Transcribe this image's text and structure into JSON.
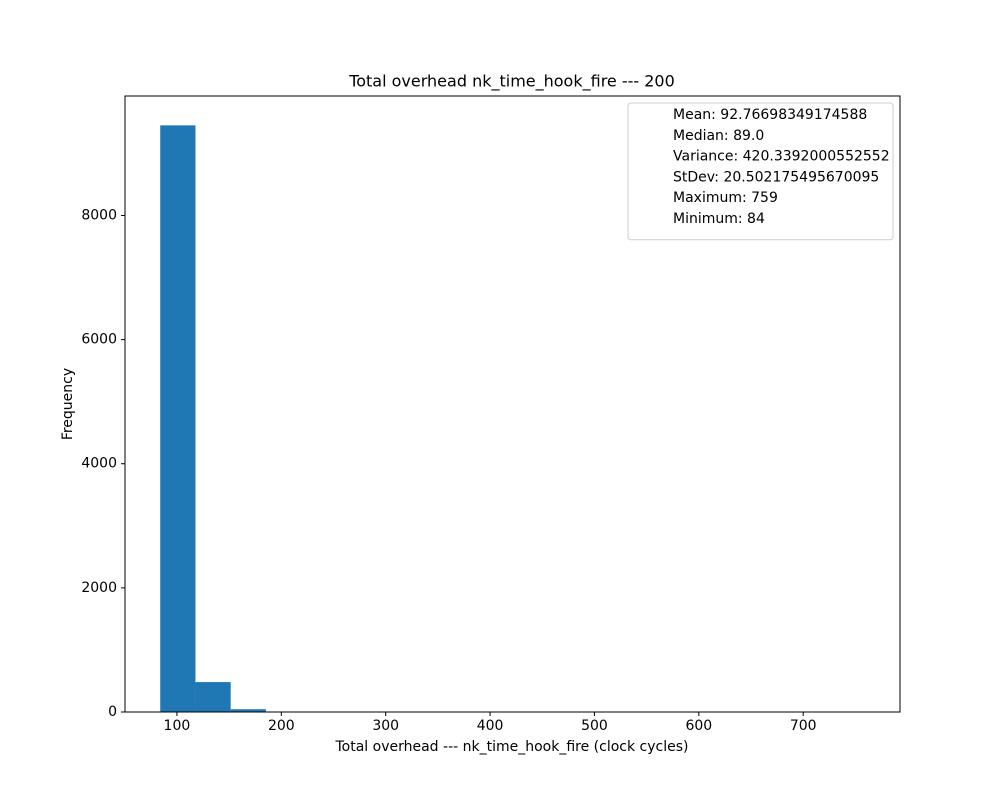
{
  "chart_data": {
    "type": "histogram",
    "title": "Total overhead nk_time_hook_fire --- 200",
    "x_label": "Total overhead --- nk_time_hook_fire (clock cycles)",
    "y_label": "Frequency",
    "bins": [
      84,
      117.75,
      151.5,
      185.25,
      219,
      252.75,
      286.5,
      320.25,
      354,
      387.75,
      421.5,
      455.25,
      489,
      522.75,
      556.5,
      590.25,
      624,
      657.75,
      691.5,
      725.25,
      759
    ],
    "values": [
      9452,
      482,
      45,
      8,
      4,
      2,
      1,
      1,
      1,
      0,
      0,
      1,
      0,
      0,
      0,
      0,
      0,
      0,
      0,
      1
    ],
    "color": "#1f77b4",
    "xlim": [
      50.25,
      792.75
    ],
    "ylim": [
      0,
      9925
    ],
    "xticks": [
      100,
      200,
      300,
      400,
      500,
      600,
      700
    ],
    "yticks": [
      0,
      2000,
      4000,
      6000,
      8000
    ],
    "legend": [
      "Mean: 92.76698349174588",
      "Median: 89.0",
      "Variance: 420.3392000552552",
      "StDev: 20.502175495670095",
      "Maximum: 759",
      "Minimum: 84"
    ],
    "legend_position": "upper right"
  }
}
